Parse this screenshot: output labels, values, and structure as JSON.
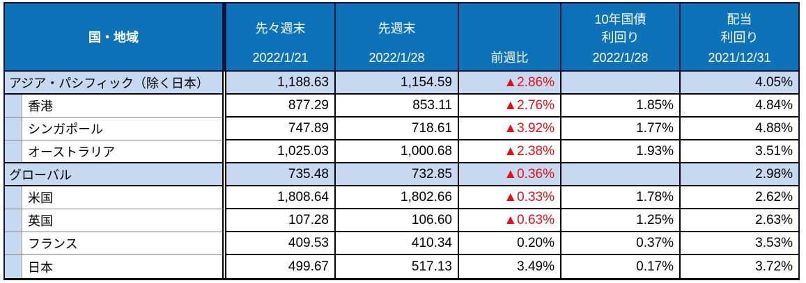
{
  "colors": {
    "header_blue": "#0e72b9",
    "header_border_navy": "#0c1535",
    "row_highlight_blue": "#c6d9f0",
    "negative_red": "#e60d16",
    "grid_black": "#000000",
    "sub_divider_gray": "#7f7f7f"
  },
  "header": {
    "region_label": "国・地域",
    "columns": [
      {
        "top1": "先々週末",
        "top2": "",
        "bottom": "2022/1/21"
      },
      {
        "top1": "先週末",
        "top2": "",
        "bottom": "2022/1/28"
      },
      {
        "top1": "",
        "top2": "",
        "bottom": "前週比"
      },
      {
        "top1": "10年国債",
        "top2": "利回り",
        "bottom": "2022/1/28"
      },
      {
        "top1": "配当",
        "top2": "利回り",
        "bottom": "2021/12/31"
      }
    ]
  },
  "rows": [
    {
      "name": "アジア・パシフィック（除く日本）",
      "level": "parent",
      "prev2": "1,188.63",
      "prev1": "1,154.59",
      "wow": "▲2.86%",
      "wow_negative": true,
      "bond_yield": "",
      "dividend_yield": "4.05%"
    },
    {
      "name": "香港",
      "level": "child",
      "prev2": "877.29",
      "prev1": "853.11",
      "wow": "▲2.76%",
      "wow_negative": true,
      "bond_yield": "1.85%",
      "dividend_yield": "4.84%"
    },
    {
      "name": "シンガポール",
      "level": "child",
      "prev2": "747.89",
      "prev1": "718.61",
      "wow": "▲3.92%",
      "wow_negative": true,
      "bond_yield": "1.77%",
      "dividend_yield": "4.88%"
    },
    {
      "name": "オーストラリア",
      "level": "child",
      "prev2": "1,025.03",
      "prev1": "1,000.68",
      "wow": "▲2.38%",
      "wow_negative": true,
      "bond_yield": "1.93%",
      "dividend_yield": "3.51%"
    },
    {
      "name": "グローバル",
      "level": "parent",
      "prev2": "735.48",
      "prev1": "732.85",
      "wow": "▲0.36%",
      "wow_negative": true,
      "bond_yield": "",
      "dividend_yield": "2.98%"
    },
    {
      "name": "米国",
      "level": "child",
      "prev2": "1,808.64",
      "prev1": "1,802.66",
      "wow": "▲0.33%",
      "wow_negative": true,
      "bond_yield": "1.78%",
      "dividend_yield": "2.62%"
    },
    {
      "name": "英国",
      "level": "child",
      "prev2": "107.28",
      "prev1": "106.60",
      "wow": "▲0.63%",
      "wow_negative": true,
      "bond_yield": "1.25%",
      "dividend_yield": "2.63%"
    },
    {
      "name": "フランス",
      "level": "child",
      "prev2": "409.53",
      "prev1": "410.34",
      "wow": "0.20%",
      "wow_negative": false,
      "bond_yield": "0.37%",
      "dividend_yield": "3.53%"
    },
    {
      "name": "日本",
      "level": "child",
      "prev2": "499.67",
      "prev1": "517.13",
      "wow": "3.49%",
      "wow_negative": false,
      "bond_yield": "0.17%",
      "dividend_yield": "3.72%"
    }
  ],
  "chart_data": {
    "type": "table",
    "columns": [
      "国・地域",
      "先々週末 2022/1/21",
      "先週末 2022/1/28",
      "前週比",
      "10年国債利回り 2022/1/28",
      "配当利回り 2021/12/31"
    ],
    "rows": [
      [
        "アジア・パシフィック（除く日本）",
        1188.63,
        1154.59,
        "▲2.86%",
        null,
        "4.05%"
      ],
      [
        "香港",
        877.29,
        853.11,
        "▲2.76%",
        "1.85%",
        "4.84%"
      ],
      [
        "シンガポール",
        747.89,
        718.61,
        "▲3.92%",
        "1.77%",
        "4.88%"
      ],
      [
        "オーストラリア",
        1025.03,
        1000.68,
        "▲2.38%",
        "1.93%",
        "3.51%"
      ],
      [
        "グローバル",
        735.48,
        732.85,
        "▲0.36%",
        null,
        "2.98%"
      ],
      [
        "米国",
        1808.64,
        1802.66,
        "▲0.33%",
        "1.78%",
        "2.62%"
      ],
      [
        "英国",
        107.28,
        106.6,
        "▲0.63%",
        "1.25%",
        "2.63%"
      ],
      [
        "フランス",
        409.53,
        410.34,
        "0.20%",
        "0.37%",
        "3.53%"
      ],
      [
        "日本",
        499.67,
        517.13,
        "3.49%",
        "0.17%",
        "3.72%"
      ]
    ]
  }
}
